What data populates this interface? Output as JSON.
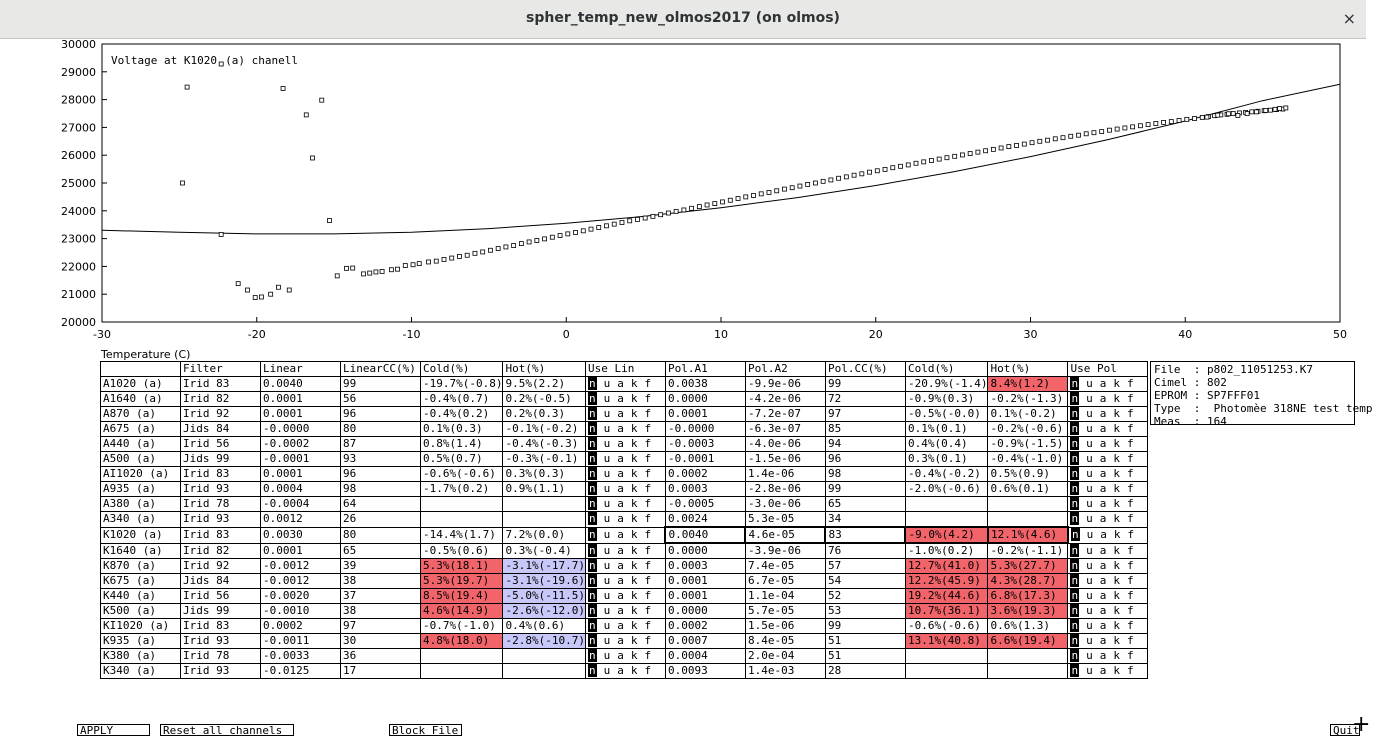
{
  "window": {
    "title": "spher_temp_new_olmos2017 (on olmos)",
    "close_glyph": "×"
  },
  "chart_data": {
    "type": "scatter",
    "title": "Voltage at K1020",
    "title_suffix": "(a) chanell",
    "xlabel": "Temperature (C)",
    "xlim": [
      -30,
      50
    ],
    "ylim": [
      20000,
      30000
    ],
    "xticks": [
      -30,
      -20,
      -10,
      0,
      10,
      20,
      30,
      40,
      50
    ],
    "yticks": [
      20000,
      21000,
      22000,
      23000,
      24000,
      25000,
      26000,
      27000,
      28000,
      29000,
      30000
    ],
    "points": [
      [
        -24.8,
        25000
      ],
      [
        -24.5,
        28450
      ],
      [
        -22.3,
        23150
      ],
      [
        -21.2,
        21380
      ],
      [
        -20.6,
        21150
      ],
      [
        -20.1,
        20880
      ],
      [
        -19.7,
        20900
      ],
      [
        -19.1,
        21000
      ],
      [
        -18.6,
        21250
      ],
      [
        -18.3,
        28400
      ],
      [
        -17.9,
        21150
      ],
      [
        -16.8,
        27450
      ],
      [
        -16.4,
        25900
      ],
      [
        -15.8,
        27980
      ],
      [
        -15.3,
        23650
      ],
      [
        -14.8,
        21660
      ],
      [
        -14.2,
        21930
      ],
      [
        -13.8,
        21940
      ],
      [
        -13.1,
        21730
      ],
      [
        -12.7,
        21760
      ],
      [
        -12.3,
        21800
      ],
      [
        -11.9,
        21820
      ],
      [
        -11.3,
        21880
      ],
      [
        -10.9,
        21900
      ],
      [
        -10.4,
        22030
      ],
      [
        -9.9,
        22060
      ],
      [
        -9.5,
        22100
      ],
      [
        -8.9,
        22160
      ],
      [
        -8.4,
        22190
      ],
      [
        -7.9,
        22250
      ],
      [
        -7.4,
        22300
      ],
      [
        -6.9,
        22360
      ],
      [
        -6.4,
        22400
      ],
      [
        -5.9,
        22470
      ],
      [
        -5.4,
        22520
      ],
      [
        -4.9,
        22580
      ],
      [
        -4.4,
        22640
      ],
      [
        -3.9,
        22700
      ],
      [
        -3.4,
        22750
      ],
      [
        -2.9,
        22820
      ],
      [
        -2.4,
        22880
      ],
      [
        -1.9,
        22930
      ],
      [
        -1.4,
        22990
      ],
      [
        -0.9,
        23050
      ],
      [
        -0.4,
        23110
      ],
      [
        0.1,
        23170
      ],
      [
        0.6,
        23220
      ],
      [
        1.1,
        23280
      ],
      [
        1.6,
        23340
      ],
      [
        2.1,
        23400
      ],
      [
        2.6,
        23460
      ],
      [
        3.1,
        23520
      ],
      [
        3.6,
        23580
      ],
      [
        4.1,
        23640
      ],
      [
        4.6,
        23690
      ],
      [
        5.1,
        23740
      ],
      [
        5.6,
        23800
      ],
      [
        6.1,
        23860
      ],
      [
        6.6,
        23920
      ],
      [
        7.1,
        23980
      ],
      [
        7.6,
        24030
      ],
      [
        8.1,
        24090
      ],
      [
        8.6,
        24150
      ],
      [
        9.1,
        24210
      ],
      [
        9.6,
        24260
      ],
      [
        10.1,
        24320
      ],
      [
        10.6,
        24380
      ],
      [
        11.1,
        24440
      ],
      [
        11.6,
        24500
      ],
      [
        12.1,
        24550
      ],
      [
        12.6,
        24610
      ],
      [
        13.1,
        24660
      ],
      [
        13.6,
        24720
      ],
      [
        14.1,
        24780
      ],
      [
        14.6,
        24830
      ],
      [
        15.1,
        24890
      ],
      [
        15.6,
        24950
      ],
      [
        16.1,
        25000
      ],
      [
        16.6,
        25060
      ],
      [
        17.1,
        25110
      ],
      [
        17.6,
        25170
      ],
      [
        18.1,
        25220
      ],
      [
        18.6,
        25280
      ],
      [
        19.1,
        25330
      ],
      [
        19.6,
        25390
      ],
      [
        20.1,
        25440
      ],
      [
        20.6,
        25490
      ],
      [
        21.1,
        25550
      ],
      [
        21.6,
        25600
      ],
      [
        22.1,
        25650
      ],
      [
        22.6,
        25710
      ],
      [
        23.1,
        25760
      ],
      [
        23.6,
        25810
      ],
      [
        24.1,
        25860
      ],
      [
        24.6,
        25910
      ],
      [
        25.1,
        25960
      ],
      [
        25.6,
        26010
      ],
      [
        26.1,
        26060
      ],
      [
        26.6,
        26110
      ],
      [
        27.1,
        26160
      ],
      [
        27.6,
        26210
      ],
      [
        28.1,
        26260
      ],
      [
        28.6,
        26310
      ],
      [
        29.1,
        26350
      ],
      [
        29.6,
        26400
      ],
      [
        30.1,
        26450
      ],
      [
        30.6,
        26500
      ],
      [
        31.1,
        26540
      ],
      [
        31.6,
        26590
      ],
      [
        32.1,
        26630
      ],
      [
        32.6,
        26680
      ],
      [
        33.1,
        26720
      ],
      [
        33.6,
        26770
      ],
      [
        34.1,
        26810
      ],
      [
        34.6,
        26850
      ],
      [
        35.1,
        26900
      ],
      [
        35.6,
        26940
      ],
      [
        36.1,
        26980
      ],
      [
        36.6,
        27020
      ],
      [
        37.1,
        27060
      ],
      [
        37.6,
        27100
      ],
      [
        38.1,
        27140
      ],
      [
        38.6,
        27180
      ],
      [
        39.1,
        27210
      ],
      [
        39.6,
        27250
      ],
      [
        40.1,
        27290
      ],
      [
        40.6,
        27320
      ],
      [
        41.1,
        27360
      ],
      [
        41.5,
        27390
      ],
      [
        41.9,
        27420
      ],
      [
        42.3,
        27450
      ],
      [
        42.7,
        27470
      ],
      [
        43.1,
        27500
      ],
      [
        43.5,
        27520
      ],
      [
        43.9,
        27540
      ],
      [
        44.3,
        27560
      ],
      [
        44.7,
        27580
      ],
      [
        45.1,
        27600
      ],
      [
        45.5,
        27620
      ],
      [
        45.9,
        27640
      ],
      [
        46.3,
        27660
      ],
      [
        41.4,
        27370
      ],
      [
        42.1,
        27440
      ],
      [
        42.8,
        27490
      ],
      [
        43.4,
        27430
      ],
      [
        44.0,
        27500
      ],
      [
        44.6,
        27560
      ],
      [
        45.2,
        27610
      ],
      [
        45.8,
        27650
      ],
      [
        46.1,
        27680
      ],
      [
        46.5,
        27700
      ]
    ],
    "fit_curve": [
      [
        -30,
        23300
      ],
      [
        -25,
        23230
      ],
      [
        -20,
        23170
      ],
      [
        -15,
        23170
      ],
      [
        -10,
        23230
      ],
      [
        -5,
        23360
      ],
      [
        0,
        23550
      ],
      [
        5,
        23800
      ],
      [
        10,
        24110
      ],
      [
        15,
        24480
      ],
      [
        20,
        24910
      ],
      [
        25,
        25400
      ],
      [
        30,
        25950
      ],
      [
        35,
        26560
      ],
      [
        40,
        27230
      ],
      [
        45,
        27960
      ],
      [
        50,
        28550
      ]
    ]
  },
  "table": {
    "headers": [
      "",
      "Filter",
      "Linear",
      "LinearCC(%)",
      "Cold(%)",
      "Hot(%)",
      "Use Lin",
      "Pol.A1",
      "Pol.A2",
      "Pol.CC(%)",
      "Cold(%)",
      "Hot(%)",
      "Use Pol"
    ],
    "ulk_letters": [
      "n",
      "u",
      "a",
      "k",
      "f"
    ],
    "rows": [
      {
        "ch": "A1020 (a)",
        "filter": "Irid 83",
        "linear": "0.0040",
        "lincc": "99",
        "cold": "-19.7%(-0.8)",
        "hot": "9.5%(2.2)",
        "a1": "0.0038",
        "a2": "-9.9e-06",
        "polcc": "99",
        "pcold": "-20.9%(-1.4)",
        "phot": "8.4%(1.2)"
      },
      {
        "ch": "A1640 (a)",
        "filter": "Irid 82",
        "linear": "0.0001",
        "lincc": "56",
        "cold": "-0.4%(0.7)",
        "hot": "0.2%(-0.5)",
        "a1": "0.0000",
        "a2": "-4.2e-06",
        "polcc": "72",
        "pcold": "-0.9%(0.3)",
        "phot": "-0.2%(-1.3)"
      },
      {
        "ch": "A870 (a)",
        "filter": "Irid 92",
        "linear": "0.0001",
        "lincc": "96",
        "cold": "-0.4%(0.2)",
        "hot": "0.2%(0.3)",
        "a1": "0.0001",
        "a2": "-7.2e-07",
        "polcc": "97",
        "pcold": "-0.5%(-0.0)",
        "phot": "0.1%(-0.2)"
      },
      {
        "ch": "A675 (a)",
        "filter": "Jids 84",
        "linear": "-0.0000",
        "lincc": "80",
        "cold": "0.1%(0.3)",
        "hot": "-0.1%(-0.2)",
        "a1": "-0.0000",
        "a2": "-6.3e-07",
        "polcc": "85",
        "pcold": "0.1%(0.1)",
        "phot": "-0.2%(-0.6)"
      },
      {
        "ch": "A440 (a)",
        "filter": "Irid 56",
        "linear": "-0.0002",
        "lincc": "87",
        "cold": "0.8%(1.4)",
        "hot": "-0.4%(-0.3)",
        "a1": "-0.0003",
        "a2": "-4.0e-06",
        "polcc": "94",
        "pcold": "0.4%(0.4)",
        "phot": "-0.9%(-1.5)"
      },
      {
        "ch": "A500 (a)",
        "filter": "Jids 99",
        "linear": "-0.0001",
        "lincc": "93",
        "cold": "0.5%(0.7)",
        "hot": "-0.3%(-0.1)",
        "a1": "-0.0001",
        "a2": "-1.5e-06",
        "polcc": "96",
        "pcold": "0.3%(0.1)",
        "phot": "-0.4%(-1.0)"
      },
      {
        "ch": "AI1020 (a)",
        "filter": "Irid 83",
        "linear": "0.0001",
        "lincc": "96",
        "cold": "-0.6%(-0.6)",
        "hot": "0.3%(0.3)",
        "a1": "0.0002",
        "a2": "1.4e-06",
        "polcc": "98",
        "pcold": "-0.4%(-0.2)",
        "phot": "0.5%(0.9)"
      },
      {
        "ch": "A935 (a)",
        "filter": "Irid 93",
        "linear": "0.0004",
        "lincc": "98",
        "cold": "-1.7%(0.2)",
        "hot": "0.9%(1.1)",
        "a1": "0.0003",
        "a2": "-2.8e-06",
        "polcc": "99",
        "pcold": "-2.0%(-0.6)",
        "phot": "0.6%(0.1)"
      },
      {
        "ch": "A380 (a)",
        "filter": "Irid 78",
        "linear": "-0.0004",
        "lincc": "64",
        "cold": "",
        "hot": "",
        "a1": "-0.0005",
        "a2": "-3.0e-06",
        "polcc": "65",
        "pcold": "",
        "phot": ""
      },
      {
        "ch": "A340 (a)",
        "filter": "Irid 93",
        "linear": "0.0012",
        "lincc": "26",
        "cold": "",
        "hot": "",
        "a1": "0.0024",
        "a2": "5.3e-05",
        "polcc": "34",
        "pcold": "",
        "phot": ""
      },
      {
        "ch": "K1020 (a)",
        "filter": "Irid 83",
        "linear": "0.0030",
        "lincc": "80",
        "cold": "-14.4%(1.7)",
        "hot": "7.2%(0.0)",
        "a1": "0.0040",
        "a2": "4.6e-05",
        "polcc": "83",
        "pcold": "-9.0%(4.2)",
        "phot": "12.1%(4.6)"
      },
      {
        "ch": "K1640 (a)",
        "filter": "Irid 82",
        "linear": "0.0001",
        "lincc": "65",
        "cold": "-0.5%(0.6)",
        "hot": "0.3%(-0.4)",
        "a1": "0.0000",
        "a2": "-3.9e-06",
        "polcc": "76",
        "pcold": "-1.0%(0.2)",
        "phot": "-0.2%(-1.1)"
      },
      {
        "ch": "K870 (a)",
        "filter": "Irid 92",
        "linear": "-0.0012",
        "lincc": "39",
        "cold": "5.3%(18.1)",
        "hot": "-3.1%(-17.7)",
        "a1": "0.0003",
        "a2": "7.4e-05",
        "polcc": "57",
        "pcold": "12.7%(41.0)",
        "phot": "5.3%(27.7)"
      },
      {
        "ch": "K675 (a)",
        "filter": "Jids 84",
        "linear": "-0.0012",
        "lincc": "38",
        "cold": "5.3%(19.7)",
        "hot": "-3.1%(-19.6)",
        "a1": "0.0001",
        "a2": "6.7e-05",
        "polcc": "54",
        "pcold": "12.2%(45.9)",
        "phot": "4.3%(28.7)"
      },
      {
        "ch": "K440 (a)",
        "filter": "Irid 56",
        "linear": "-0.0020",
        "lincc": "37",
        "cold": "8.5%(19.4)",
        "hot": "-5.0%(-11.5)",
        "a1": "0.0001",
        "a2": "1.1e-04",
        "polcc": "52",
        "pcold": "19.2%(44.6)",
        "phot": "6.8%(17.3)"
      },
      {
        "ch": "K500 (a)",
        "filter": "Jids 99",
        "linear": "-0.0010",
        "lincc": "38",
        "cold": "4.6%(14.9)",
        "hot": "-2.6%(-12.0)",
        "a1": "0.0000",
        "a2": "5.7e-05",
        "polcc": "53",
        "pcold": "10.7%(36.1)",
        "phot": "3.6%(19.3)"
      },
      {
        "ch": "KI1020 (a)",
        "filter": "Irid 83",
        "linear": "0.0002",
        "lincc": "97",
        "cold": "-0.7%(-1.0)",
        "hot": "0.4%(0.6)",
        "a1": "0.0002",
        "a2": "1.5e-06",
        "polcc": "99",
        "pcold": "-0.6%(-0.6)",
        "phot": "0.6%(1.3)"
      },
      {
        "ch": "K935 (a)",
        "filter": "Irid 93",
        "linear": "-0.0011",
        "lincc": "30",
        "cold": "4.8%(18.0)",
        "hot": "-2.8%(-10.7)",
        "a1": "0.0007",
        "a2": "8.4e-05",
        "polcc": "51",
        "pcold": "13.1%(40.8)",
        "phot": "6.6%(19.4)"
      },
      {
        "ch": "K380 (a)",
        "filter": "Irid 78",
        "linear": "-0.0033",
        "lincc": "36",
        "cold": "",
        "hot": "",
        "a1": "0.0004",
        "a2": "2.0e-04",
        "polcc": "51",
        "pcold": "",
        "phot": ""
      },
      {
        "ch": "K340 (a)",
        "filter": "Irid 93",
        "linear": "-0.0125",
        "lincc": "17",
        "cold": "",
        "hot": "",
        "a1": "0.0093",
        "a2": "1.4e-03",
        "polcc": "28",
        "pcold": "",
        "phot": ""
      }
    ]
  },
  "info": {
    "lines": [
      "File  : p802_11051253.K7",
      "Cimel : 802",
      "EPROM : SP7FFF01",
      "Type  :  Photomèe 318NE test temp",
      "Meas  : 164"
    ]
  },
  "buttons": {
    "apply": "APPLY",
    "reset": "Reset all channels",
    "block": "Block File",
    "quit": "Quit"
  },
  "colors": {
    "red": "#f0646a",
    "blue": "#c8c8f8"
  }
}
